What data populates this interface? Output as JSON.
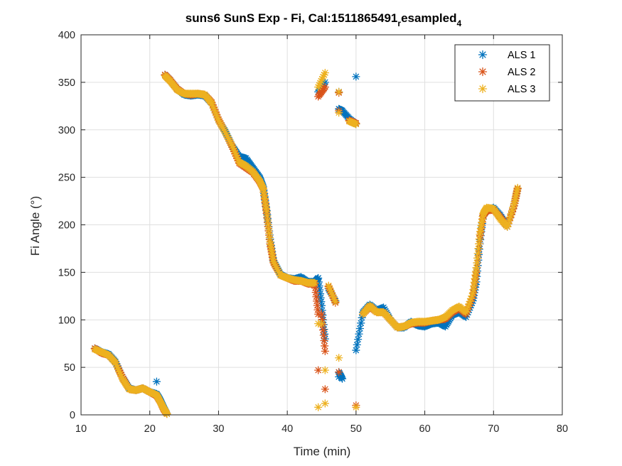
{
  "chart_data": {
    "type": "scatter",
    "title": {
      "main": "suns6 SunS Exp - Fi, Cal:1511865491",
      "sub1": "r",
      "mid": "esampled",
      "sub2": "4"
    },
    "xlabel": "Time (min)",
    "ylabel": "Fi Angle (°)",
    "xlim": [
      10,
      80
    ],
    "ylim": [
      0,
      400
    ],
    "xticks": [
      10,
      20,
      30,
      40,
      50,
      60,
      70,
      80
    ],
    "yticks": [
      0,
      50,
      100,
      150,
      200,
      250,
      300,
      350,
      400
    ],
    "grid": true,
    "legend": {
      "placement": "top-right"
    },
    "marker": "asterisk",
    "series": [
      {
        "name": "ALS 1",
        "color": "#0072BD",
        "points": [
          [
            12.0,
            70
          ],
          [
            13.0,
            66
          ],
          [
            14.0,
            64
          ],
          [
            15.0,
            56
          ],
          [
            16.0,
            40
          ],
          [
            17.0,
            28
          ],
          [
            18.0,
            26
          ],
          [
            19.0,
            28
          ],
          [
            20.0,
            24
          ],
          [
            21.0,
            22
          ],
          [
            21.5,
            16
          ],
          [
            22.0,
            8
          ],
          [
            22.5,
            1
          ],
          [
            21.0,
            35
          ],
          [
            22.2,
            358
          ],
          [
            23.0,
            352
          ],
          [
            24.0,
            343
          ],
          [
            25.0,
            337
          ],
          [
            26.0,
            336
          ],
          [
            27.0,
            337
          ],
          [
            28.0,
            336
          ],
          [
            29.0,
            328
          ],
          [
            30.0,
            310
          ],
          [
            31.0,
            298
          ],
          [
            32.0,
            283
          ],
          [
            33.0,
            272
          ],
          [
            34.0,
            270
          ],
          [
            35.0,
            260
          ],
          [
            36.0,
            250
          ],
          [
            36.5,
            240
          ],
          [
            37.0,
            215
          ],
          [
            37.5,
            185
          ],
          [
            38.0,
            162
          ],
          [
            39.0,
            148
          ],
          [
            40.0,
            144
          ],
          [
            41.0,
            143
          ],
          [
            42.0,
            145
          ],
          [
            43.0,
            140
          ],
          [
            44.0,
            140
          ],
          [
            44.5,
            144
          ],
          [
            45.0,
            115
          ],
          [
            45.5,
            80
          ],
          [
            46.0,
            133
          ],
          [
            47.0,
            120
          ],
          [
            47.5,
            40
          ],
          [
            47.5,
            45
          ],
          [
            48.0,
            38
          ],
          [
            44.5,
            340
          ],
          [
            45.5,
            350
          ],
          [
            47.5,
            340
          ],
          [
            47.5,
            322
          ],
          [
            48.0,
            320
          ],
          [
            49.0,
            312
          ],
          [
            50.0,
            306
          ],
          [
            50.0,
            356
          ],
          [
            50.0,
            68
          ],
          [
            51.0,
            108
          ],
          [
            52.0,
            116
          ],
          [
            53.0,
            110
          ],
          [
            54.0,
            113
          ],
          [
            55.0,
            100
          ],
          [
            56.0,
            92
          ],
          [
            57.0,
            92
          ],
          [
            58.0,
            98
          ],
          [
            59.0,
            94
          ],
          [
            60.0,
            93
          ],
          [
            61.0,
            96
          ],
          [
            62.0,
            97
          ],
          [
            63.0,
            93
          ],
          [
            64.0,
            105
          ],
          [
            65.0,
            108
          ],
          [
            66.0,
            103
          ],
          [
            67.0,
            120
          ],
          [
            67.5,
            140
          ],
          [
            68.0,
            180
          ],
          [
            68.5,
            210
          ],
          [
            69.0,
            215
          ],
          [
            70.0,
            218
          ],
          [
            71.0,
            210
          ],
          [
            72.0,
            198
          ],
          [
            73.0,
            220
          ],
          [
            73.5,
            238
          ]
        ]
      },
      {
        "name": "ALS 2",
        "color": "#D95319",
        "points": [
          [
            12.0,
            70
          ],
          [
            13.0,
            65
          ],
          [
            14.0,
            63
          ],
          [
            15.0,
            55
          ],
          [
            16.0,
            40
          ],
          [
            17.0,
            27
          ],
          [
            18.0,
            26
          ],
          [
            19.0,
            28
          ],
          [
            20.0,
            24
          ],
          [
            21.0,
            20
          ],
          [
            21.5,
            14
          ],
          [
            22.0,
            6
          ],
          [
            22.5,
            1
          ],
          [
            22.2,
            358
          ],
          [
            23.0,
            352
          ],
          [
            24.0,
            343
          ],
          [
            25.0,
            338
          ],
          [
            26.0,
            337
          ],
          [
            27.0,
            338
          ],
          [
            28.0,
            337
          ],
          [
            29.0,
            329
          ],
          [
            30.0,
            311
          ],
          [
            31.0,
            297
          ],
          [
            32.0,
            282
          ],
          [
            33.0,
            265
          ],
          [
            34.0,
            260
          ],
          [
            35.0,
            255
          ],
          [
            36.0,
            245
          ],
          [
            36.5,
            238
          ],
          [
            37.0,
            212
          ],
          [
            37.5,
            180
          ],
          [
            38.0,
            160
          ],
          [
            39.0,
            147
          ],
          [
            40.0,
            144
          ],
          [
            41.0,
            141
          ],
          [
            42.0,
            141
          ],
          [
            43.0,
            138
          ],
          [
            44.0,
            138
          ],
          [
            44.5,
            106
          ],
          [
            44.5,
            47
          ],
          [
            45.0,
            106
          ],
          [
            45.5,
            67
          ],
          [
            45.5,
            27
          ],
          [
            46.0,
            135
          ],
          [
            47.0,
            118
          ],
          [
            47.5,
            45
          ],
          [
            44.5,
            335
          ],
          [
            45.5,
            345
          ],
          [
            47.5,
            339
          ],
          [
            47.5,
            320
          ],
          [
            49.0,
            310
          ],
          [
            50.0,
            307
          ],
          [
            50.0,
            10
          ],
          [
            51.0,
            106
          ],
          [
            52.0,
            114
          ],
          [
            53.0,
            108
          ],
          [
            54.0,
            108
          ],
          [
            55.0,
            100
          ],
          [
            56.0,
            92
          ],
          [
            57.0,
            93
          ],
          [
            58.0,
            96
          ],
          [
            59.0,
            97
          ],
          [
            60.0,
            97
          ],
          [
            61.0,
            99
          ],
          [
            62.0,
            100
          ],
          [
            63.0,
            101
          ],
          [
            64.0,
            108
          ],
          [
            65.0,
            112
          ],
          [
            66.0,
            106
          ],
          [
            67.0,
            125
          ],
          [
            67.5,
            150
          ],
          [
            68.0,
            185
          ],
          [
            68.5,
            210
          ],
          [
            69.0,
            215
          ],
          [
            70.0,
            216
          ],
          [
            71.0,
            208
          ],
          [
            72.0,
            198
          ],
          [
            73.0,
            220
          ],
          [
            73.5,
            238
          ]
        ]
      },
      {
        "name": "ALS 3",
        "color": "#EDB120",
        "points": [
          [
            12.0,
            69
          ],
          [
            13.0,
            66
          ],
          [
            14.0,
            63
          ],
          [
            15.0,
            55
          ],
          [
            16.0,
            38
          ],
          [
            17.0,
            27
          ],
          [
            18.0,
            26
          ],
          [
            19.0,
            28
          ],
          [
            20.0,
            24
          ],
          [
            21.0,
            21
          ],
          [
            21.5,
            14
          ],
          [
            22.0,
            7
          ],
          [
            22.5,
            1
          ],
          [
            22.2,
            357
          ],
          [
            23.0,
            351
          ],
          [
            24.0,
            342
          ],
          [
            25.0,
            338
          ],
          [
            26.0,
            338
          ],
          [
            27.0,
            338
          ],
          [
            28.0,
            337
          ],
          [
            29.0,
            328
          ],
          [
            30.0,
            310
          ],
          [
            31.0,
            297
          ],
          [
            32.0,
            283
          ],
          [
            33.0,
            266
          ],
          [
            34.0,
            262
          ],
          [
            35.0,
            256
          ],
          [
            36.0,
            246
          ],
          [
            36.5,
            238
          ],
          [
            37.0,
            214
          ],
          [
            37.5,
            182
          ],
          [
            38.0,
            161
          ],
          [
            39.0,
            147
          ],
          [
            40.0,
            144
          ],
          [
            41.0,
            142
          ],
          [
            42.0,
            141
          ],
          [
            43.0,
            139
          ],
          [
            44.0,
            139
          ],
          [
            44.5,
            96
          ],
          [
            44.5,
            8
          ],
          [
            45.0,
            96
          ],
          [
            45.5,
            47
          ],
          [
            45.5,
            12
          ],
          [
            46.0,
            136
          ],
          [
            47.0,
            119
          ],
          [
            47.5,
            60
          ],
          [
            44.5,
            345
          ],
          [
            45.5,
            360
          ],
          [
            47.5,
            340
          ],
          [
            47.5,
            318
          ],
          [
            49.0,
            309
          ],
          [
            50.0,
            306
          ],
          [
            50.0,
            8
          ],
          [
            51.0,
            106
          ],
          [
            52.0,
            115
          ],
          [
            53.0,
            108
          ],
          [
            54.0,
            108
          ],
          [
            55.0,
            100
          ],
          [
            56.0,
            92
          ],
          [
            57.0,
            93
          ],
          [
            58.0,
            97
          ],
          [
            59.0,
            98
          ],
          [
            60.0,
            98
          ],
          [
            61.0,
            99
          ],
          [
            62.0,
            100
          ],
          [
            63.0,
            103
          ],
          [
            64.0,
            110
          ],
          [
            65.0,
            114
          ],
          [
            66.0,
            108
          ],
          [
            67.0,
            128
          ],
          [
            67.5,
            155
          ],
          [
            68.0,
            190
          ],
          [
            68.5,
            212
          ],
          [
            69.0,
            218
          ],
          [
            70.0,
            217
          ],
          [
            71.0,
            206
          ],
          [
            72.0,
            198
          ],
          [
            73.0,
            222
          ],
          [
            73.5,
            239
          ]
        ]
      }
    ]
  }
}
